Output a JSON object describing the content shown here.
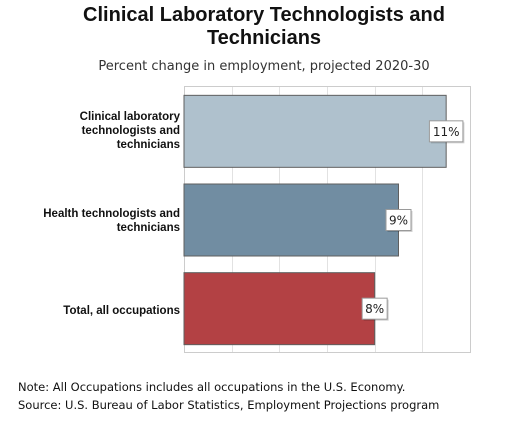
{
  "chart_data": {
    "type": "bar",
    "orientation": "horizontal",
    "title_lines": [
      "Clinical Laboratory Technologists and",
      "Technicians"
    ],
    "subtitle": "Percent change in employment, projected 2020-30",
    "categories": [
      "Clinical laboratory technologists and technicians",
      "Health technologists and technicians",
      "Total, all occupations"
    ],
    "category_label_lines": [
      [
        "Clinical laboratory",
        "technologists and",
        "technicians"
      ],
      [
        "Health technologists and",
        "technicians"
      ],
      [
        "Total, all occupations"
      ]
    ],
    "values": [
      11,
      9,
      8
    ],
    "data_labels": [
      "11%",
      "9%",
      "8%"
    ],
    "colors": [
      "#afc1cd",
      "#718da2",
      "#b34144"
    ],
    "xlim": [
      0,
      12
    ],
    "grid": true,
    "notes": [
      "Note: All Occupations includes all occupations in the U.S. Economy.",
      "Source: U.S. Bureau of Labor Statistics, Employment Projections program"
    ]
  }
}
